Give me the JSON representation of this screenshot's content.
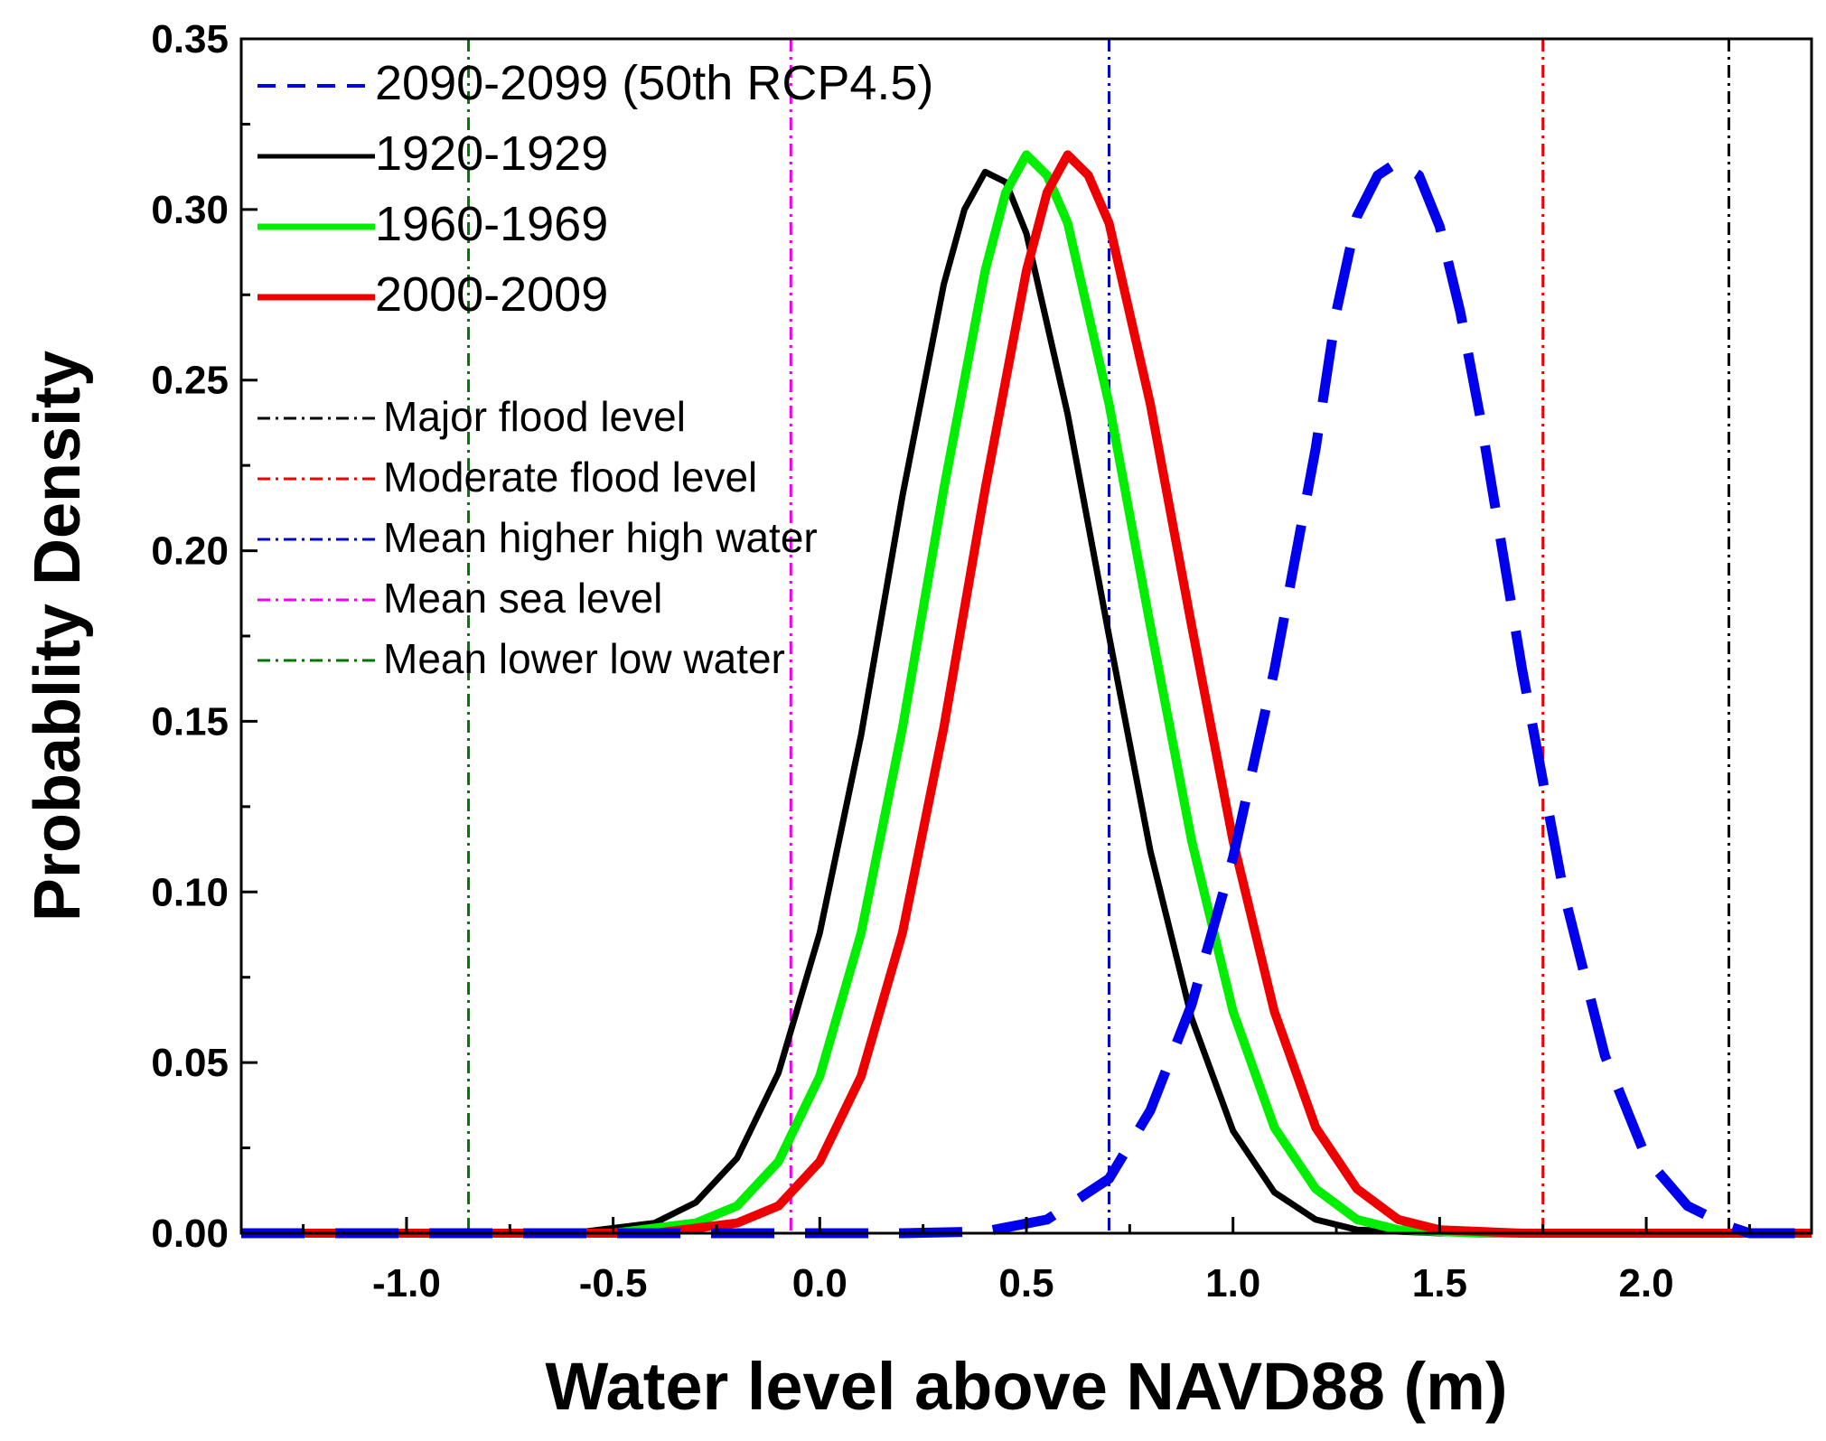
{
  "chart_data": {
    "type": "line",
    "xlabel": "Water level above NAVD88 (m)",
    "ylabel": "Probablity Density",
    "xlim": [
      -1.4,
      2.4
    ],
    "ylim": [
      0,
      0.35
    ],
    "x_ticks": [
      "-1.0",
      "-0.5",
      "0.0",
      "0.5",
      "1.0",
      "1.5",
      "2.0"
    ],
    "x_tick_values": [
      -1.0,
      -0.5,
      0.0,
      0.5,
      1.0,
      1.5,
      2.0
    ],
    "y_ticks": [
      "0.00",
      "0.05",
      "0.10",
      "0.15",
      "0.20",
      "0.25",
      "0.30",
      "0.35"
    ],
    "y_tick_values": [
      0.0,
      0.05,
      0.1,
      0.15,
      0.2,
      0.25,
      0.3,
      0.35
    ],
    "grid": false,
    "legend_position": "top-left",
    "series": [
      {
        "name": "2090-2099 (50th RCP4.5)",
        "color": "#0000ee",
        "style": "dashed",
        "x": [
          -1.4,
          -0.5,
          0.0,
          0.2,
          0.4,
          0.55,
          0.7,
          0.8,
          0.9,
          1.0,
          1.1,
          1.2,
          1.25,
          1.3,
          1.35,
          1.4,
          1.45,
          1.5,
          1.55,
          1.6,
          1.7,
          1.8,
          1.9,
          2.0,
          2.1,
          2.2,
          2.25,
          2.4
        ],
        "y": [
          0.0,
          0.0,
          0.0,
          0.0,
          0.0005,
          0.004,
          0.016,
          0.036,
          0.067,
          0.11,
          0.165,
          0.23,
          0.27,
          0.298,
          0.31,
          0.314,
          0.31,
          0.295,
          0.27,
          0.238,
          0.165,
          0.1,
          0.052,
          0.022,
          0.008,
          0.002,
          0.0,
          0.0
        ]
      },
      {
        "name": "1920-1929",
        "color": "#000000",
        "style": "solid",
        "x": [
          -1.4,
          -0.6,
          -0.4,
          -0.3,
          -0.2,
          -0.1,
          0.0,
          0.1,
          0.2,
          0.3,
          0.35,
          0.4,
          0.45,
          0.5,
          0.6,
          0.7,
          0.8,
          0.9,
          1.0,
          1.1,
          1.2,
          1.3,
          1.5,
          2.4
        ],
        "y": [
          0.0,
          0.0,
          0.003,
          0.009,
          0.022,
          0.047,
          0.088,
          0.146,
          0.216,
          0.278,
          0.3,
          0.311,
          0.308,
          0.293,
          0.24,
          0.175,
          0.112,
          0.063,
          0.03,
          0.012,
          0.004,
          0.001,
          0.0,
          0.0
        ]
      },
      {
        "name": "1960-1969",
        "color": "#00ee00",
        "style": "solid",
        "x": [
          -1.4,
          -0.5,
          -0.3,
          -0.2,
          -0.1,
          0.0,
          0.1,
          0.2,
          0.3,
          0.4,
          0.45,
          0.5,
          0.55,
          0.6,
          0.7,
          0.8,
          0.9,
          1.0,
          1.1,
          1.2,
          1.3,
          1.4,
          1.6,
          2.4
        ],
        "y": [
          0.0,
          0.0,
          0.003,
          0.008,
          0.021,
          0.046,
          0.088,
          0.148,
          0.218,
          0.282,
          0.305,
          0.316,
          0.31,
          0.296,
          0.243,
          0.178,
          0.115,
          0.065,
          0.031,
          0.013,
          0.004,
          0.001,
          0.0,
          0.0
        ]
      },
      {
        "name": "2000-2009",
        "color": "#ee0000",
        "style": "solid",
        "x": [
          -1.4,
          -0.4,
          -0.2,
          -0.1,
          0.0,
          0.1,
          0.2,
          0.3,
          0.4,
          0.5,
          0.55,
          0.6,
          0.65,
          0.7,
          0.8,
          0.9,
          1.0,
          1.1,
          1.2,
          1.3,
          1.4,
          1.5,
          1.7,
          2.4
        ],
        "y": [
          0.0,
          0.0,
          0.003,
          0.008,
          0.021,
          0.046,
          0.088,
          0.148,
          0.218,
          0.282,
          0.305,
          0.316,
          0.31,
          0.296,
          0.243,
          0.178,
          0.115,
          0.065,
          0.031,
          0.013,
          0.004,
          0.001,
          0.0,
          0.0
        ]
      }
    ],
    "reference_lines": [
      {
        "name": "Major flood level",
        "x": 2.2,
        "color": "#000000"
      },
      {
        "name": "Moderate flood level",
        "x": 1.75,
        "color": "#ee0000"
      },
      {
        "name": "Mean higher high water",
        "x": 0.7,
        "color": "#0000cc"
      },
      {
        "name": "Mean sea level",
        "x": -0.07,
        "color": "#ee00ee"
      },
      {
        "name": "Mean lower low water",
        "x": -0.85,
        "color": "#007700"
      }
    ]
  }
}
